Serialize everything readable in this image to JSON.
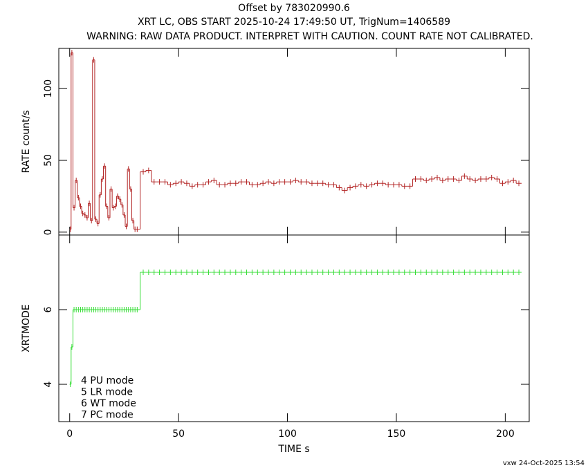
{
  "header": {
    "title": "Offset by 783020990.6",
    "subtitle": "XRT LC, OBS START 2025-10-24 17:49:50 UT, TrigNum=1406589",
    "warning": "WARNING: RAW DATA PRODUCT. INTERPRET WITH CAUTION. COUNT RATE NOT CALIBRATED.",
    "footer": "vxw 24-Oct-2025 13:54"
  },
  "chart_data": [
    {
      "type": "step",
      "ylabel": "RATE  count/s",
      "color": "#b22222",
      "xlim": [
        -5,
        211
      ],
      "ylim": [
        -2,
        128
      ],
      "yticks": [
        0,
        50,
        100
      ],
      "x": [
        0.3,
        1,
        2,
        3,
        4,
        5,
        6,
        7,
        8,
        9,
        10,
        11,
        12,
        13,
        14,
        15,
        16,
        17,
        18,
        19,
        20,
        21,
        22,
        23,
        24,
        25,
        26,
        27,
        28,
        29,
        30,
        31,
        33.75,
        36.25,
        38.75,
        41.25,
        43.75,
        46.25,
        48.75,
        51.25,
        53.75,
        56.25,
        58.75,
        61.25,
        63.75,
        66.25,
        68.75,
        71.25,
        73.75,
        76.25,
        78.75,
        81.25,
        83.75,
        86.25,
        88.75,
        91.25,
        93.75,
        96.25,
        98.75,
        101.25,
        103.75,
        106.25,
        108.75,
        111.25,
        113.75,
        116.25,
        118.75,
        121.25,
        123.75,
        126.25,
        128.75,
        131.25,
        133.75,
        136.25,
        138.75,
        141.25,
        143.75,
        146.25,
        148.75,
        151.25,
        153.75,
        156.25,
        158.75,
        161.25,
        163.75,
        166.25,
        168.75,
        171.25,
        173.75,
        176.25,
        178.75,
        181.25,
        183.75,
        186.25,
        188.75,
        191.25,
        193.75,
        196.25,
        198.75,
        201.25,
        203.75,
        206.25
      ],
      "values": [
        2,
        125,
        17,
        36,
        24,
        18,
        13,
        12,
        10,
        20,
        8,
        120,
        9,
        6,
        26,
        37,
        46,
        18,
        10,
        30,
        17,
        18,
        25,
        23,
        19,
        12,
        4,
        44,
        30,
        8,
        2,
        2,
        42,
        43,
        35,
        35,
        35,
        33,
        34,
        35,
        34,
        32,
        33,
        33,
        35,
        36,
        33,
        33,
        34,
        34,
        35,
        35,
        33,
        33,
        34,
        35,
        34,
        35,
        35,
        35,
        36,
        35,
        35,
        34,
        34,
        34,
        33,
        33,
        31,
        29,
        31,
        32,
        33,
        32,
        33,
        34,
        34,
        33,
        33,
        33,
        32,
        32,
        37,
        37,
        36,
        37,
        38,
        36,
        37,
        37,
        36,
        39,
        37,
        36,
        37,
        37,
        38,
        37,
        34,
        35,
        36,
        34
      ]
    },
    {
      "type": "step",
      "ylabel": "XRTMODE",
      "xlabel": "TIME  s",
      "color": "#33dd33",
      "xlim": [
        -5,
        211
      ],
      "ylim": [
        3,
        8
      ],
      "yticks": [
        4,
        6
      ],
      "xticks": [
        0,
        50,
        100,
        150,
        200
      ],
      "annotations": [
        "4 PU mode",
        "5 LR mode",
        "6 WT mode",
        "7 PC mode"
      ],
      "x": [
        0.3,
        1,
        2,
        3,
        4,
        5,
        6,
        7,
        8,
        9,
        10,
        11,
        12,
        13,
        14,
        15,
        16,
        17,
        18,
        19,
        20,
        21,
        22,
        23,
        24,
        25,
        26,
        27,
        28,
        29,
        30,
        31,
        33.75,
        36.25,
        38.75,
        41.25,
        43.75,
        46.25,
        48.75,
        51.25,
        53.75,
        56.25,
        58.75,
        61.25,
        63.75,
        66.25,
        68.75,
        71.25,
        73.75,
        76.25,
        78.75,
        81.25,
        83.75,
        86.25,
        88.75,
        91.25,
        93.75,
        96.25,
        98.75,
        101.25,
        103.75,
        106.25,
        108.75,
        111.25,
        113.75,
        116.25,
        118.75,
        121.25,
        123.75,
        126.25,
        128.75,
        131.25,
        133.75,
        136.25,
        138.75,
        141.25,
        143.75,
        146.25,
        148.75,
        151.25,
        153.75,
        156.25,
        158.75,
        161.25,
        163.75,
        166.25,
        168.75,
        171.25,
        173.75,
        176.25,
        178.75,
        181.25,
        183.75,
        186.25,
        188.75,
        191.25,
        193.75,
        196.25,
        198.75,
        201.25,
        203.75,
        206.25
      ],
      "values": [
        4,
        5,
        6,
        6,
        6,
        6,
        6,
        6,
        6,
        6,
        6,
        6,
        6,
        6,
        6,
        6,
        6,
        6,
        6,
        6,
        6,
        6,
        6,
        6,
        6,
        6,
        6,
        6,
        6,
        6,
        6,
        6,
        7,
        7,
        7,
        7,
        7,
        7,
        7,
        7,
        7,
        7,
        7,
        7,
        7,
        7,
        7,
        7,
        7,
        7,
        7,
        7,
        7,
        7,
        7,
        7,
        7,
        7,
        7,
        7,
        7,
        7,
        7,
        7,
        7,
        7,
        7,
        7,
        7,
        7,
        7,
        7,
        7,
        7,
        7,
        7,
        7,
        7,
        7,
        7,
        7,
        7,
        7,
        7,
        7,
        7,
        7,
        7,
        7,
        7,
        7,
        7,
        7,
        7,
        7,
        7,
        7,
        7,
        7,
        7,
        7,
        7
      ]
    }
  ]
}
